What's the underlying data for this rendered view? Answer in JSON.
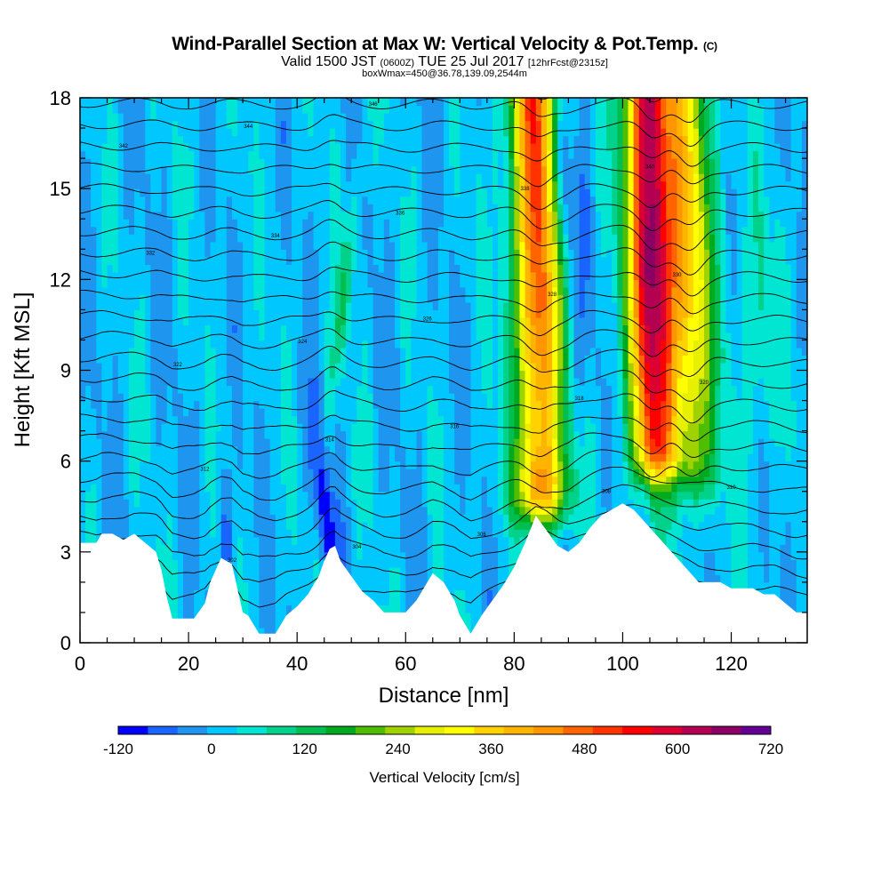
{
  "header": {
    "title_main": "Wind-Parallel Section at Max W: Vertical Velocity & Pot.Temp.",
    "title_tag": "(C)",
    "valid_prefix": "Valid 1500 JST",
    "valid_utc": "(0600Z)",
    "valid_date": "TUE 25 Jul 2017",
    "forecast_info": "[12hrFcst@2315z]",
    "box_info": "boxWmax=450@36.78,139.09,2544m"
  },
  "chart_data": {
    "type": "heatmap",
    "xlabel": "Distance [nm]",
    "ylabel": "Height [Kft MSL]",
    "xlim": [
      0,
      134
    ],
    "ylim": [
      0,
      18
    ],
    "x_ticks": [
      "0",
      "20",
      "40",
      "60",
      "80",
      "100",
      "120"
    ],
    "y_ticks": [
      "0",
      "3",
      "6",
      "9",
      "12",
      "15",
      "18"
    ],
    "colorbar": {
      "label": "Vertical Velocity [cm/s]",
      "min": -120,
      "max": 720,
      "step": 40,
      "tick_labels": [
        "-120",
        "0",
        "120",
        "240",
        "360",
        "480",
        "600",
        "720"
      ],
      "colors": [
        "#0000ff",
        "#1a64ff",
        "#1e96f0",
        "#00c8ff",
        "#00e6d2",
        "#00d28c",
        "#00be50",
        "#00aa1e",
        "#50be00",
        "#a0d200",
        "#e6f000",
        "#ffff00",
        "#ffd200",
        "#ffb400",
        "#ff9600",
        "#ff6400",
        "#ff3200",
        "#ff0000",
        "#dc0032",
        "#b40050",
        "#8c0064",
        "#640096"
      ]
    },
    "terrain_kft": [
      [
        0,
        3.3
      ],
      [
        3,
        3.3
      ],
      [
        4,
        3.6
      ],
      [
        6,
        3.6
      ],
      [
        8,
        3.4
      ],
      [
        10,
        3.6
      ],
      [
        12,
        3.3
      ],
      [
        14,
        3.0
      ],
      [
        15,
        2.4
      ],
      [
        16,
        1.5
      ],
      [
        17,
        0.8
      ],
      [
        21,
        0.8
      ],
      [
        23,
        1.3
      ],
      [
        24,
        2.0
      ],
      [
        25,
        2.4
      ],
      [
        26,
        2.8
      ],
      [
        28,
        2.6
      ],
      [
        29,
        1.8
      ],
      [
        30,
        1.0
      ],
      [
        31,
        0.9
      ],
      [
        32,
        0.6
      ],
      [
        33,
        0.3
      ],
      [
        36,
        0.3
      ],
      [
        37,
        0.6
      ],
      [
        38,
        0.9
      ],
      [
        40,
        1.2
      ],
      [
        42,
        1.6
      ],
      [
        44,
        2.2
      ],
      [
        45,
        2.7
      ],
      [
        46,
        3.1
      ],
      [
        47,
        3.2
      ],
      [
        48,
        2.7
      ],
      [
        50,
        2.2
      ],
      [
        52,
        1.7
      ],
      [
        54,
        1.4
      ],
      [
        56,
        1.0
      ],
      [
        60,
        1.0
      ],
      [
        62,
        1.4
      ],
      [
        64,
        2.0
      ],
      [
        65,
        2.3
      ],
      [
        67,
        2.0
      ],
      [
        69,
        1.4
      ],
      [
        70,
        0.9
      ],
      [
        71,
        0.6
      ],
      [
        72,
        0.3
      ],
      [
        73,
        0.6
      ],
      [
        74,
        0.9
      ],
      [
        76,
        1.4
      ],
      [
        78,
        1.9
      ],
      [
        80,
        2.5
      ],
      [
        82,
        3.3
      ],
      [
        84,
        4.2
      ],
      [
        86,
        3.7
      ],
      [
        88,
        3.2
      ],
      [
        90,
        3.0
      ],
      [
        92,
        3.3
      ],
      [
        94,
        3.8
      ],
      [
        96,
        4.2
      ],
      [
        98,
        4.4
      ],
      [
        100,
        4.6
      ],
      [
        102,
        4.4
      ],
      [
        104,
        4.0
      ],
      [
        106,
        3.6
      ],
      [
        108,
        3.2
      ],
      [
        110,
        2.8
      ],
      [
        112,
        2.4
      ],
      [
        114,
        2.0
      ],
      [
        118,
        2.0
      ],
      [
        120,
        1.8
      ],
      [
        124,
        1.8
      ],
      [
        126,
        1.6
      ],
      [
        128,
        1.6
      ],
      [
        130,
        1.3
      ],
      [
        132,
        1.0
      ],
      [
        134,
        1.0
      ]
    ],
    "theta_contours": {
      "count": 26,
      "labels": [
        "300",
        "302",
        "304",
        "306",
        "308",
        "310",
        "312",
        "314",
        "316",
        "318",
        "320",
        "322",
        "324",
        "326",
        "328",
        "330",
        "332",
        "334",
        "336",
        "338",
        "340",
        "342",
        "344",
        "346",
        "348",
        "350"
      ]
    },
    "updraft_cores": [
      {
        "x_nm": 84.5,
        "width_nm": 3.0,
        "base_kft": 5.0,
        "top_kft": 18,
        "peak_cm_s": 500
      },
      {
        "x_nm": 105.5,
        "width_nm": 2.8,
        "base_kft": 6.5,
        "top_kft": 18,
        "peak_cm_s": 600
      },
      {
        "x_nm": 112.5,
        "width_nm": 3.0,
        "base_kft": 6.0,
        "top_kft": 18,
        "peak_cm_s": 250
      }
    ]
  }
}
